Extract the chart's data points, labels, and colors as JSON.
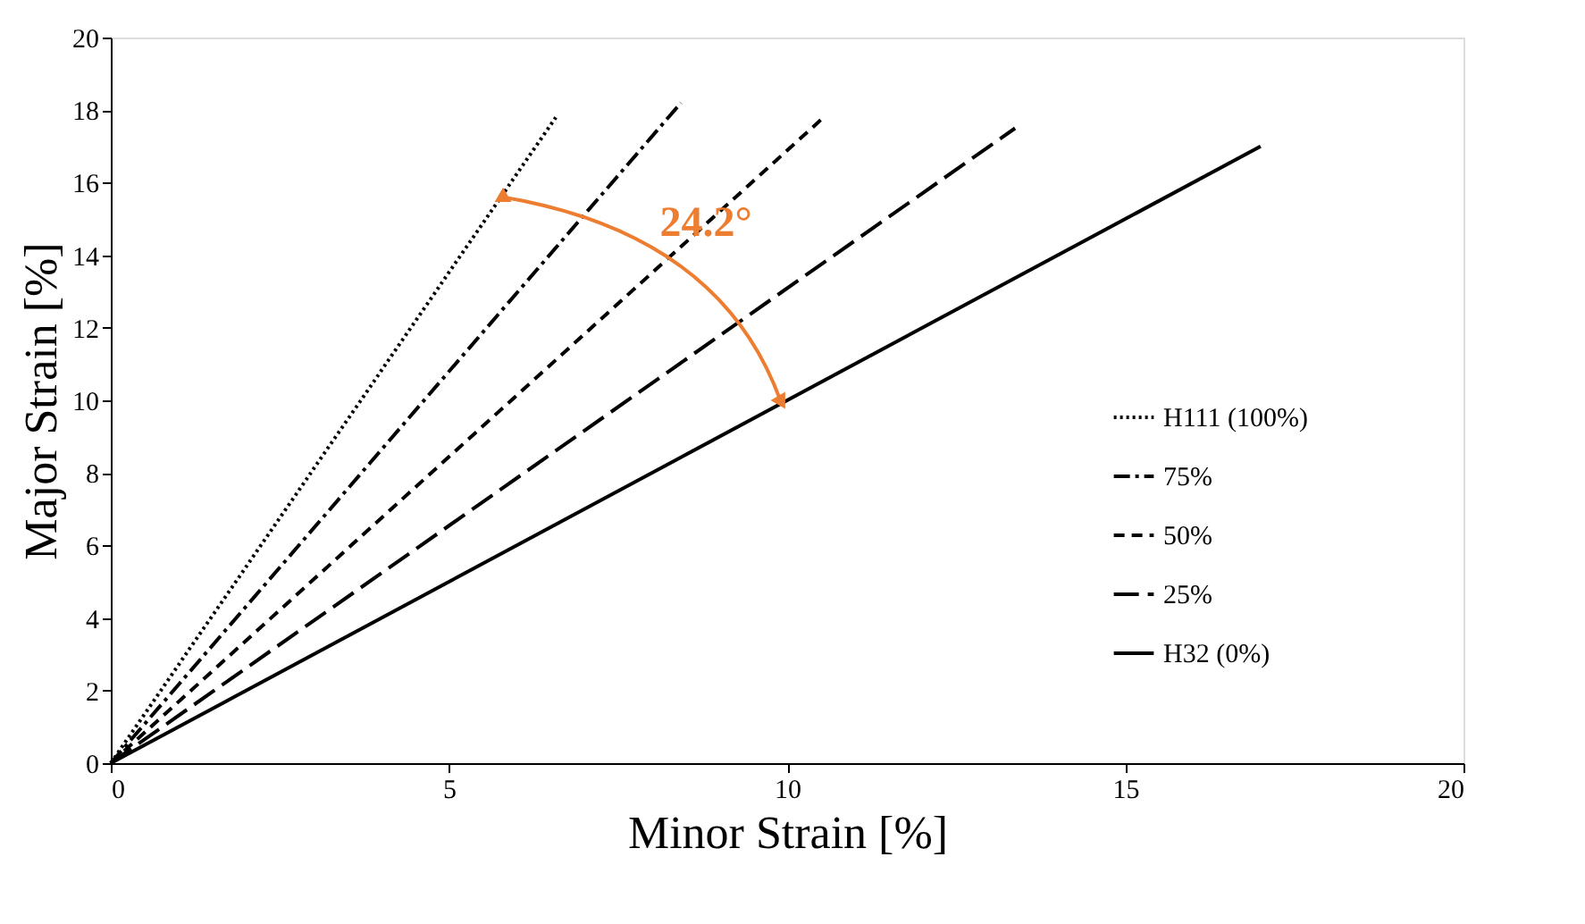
{
  "chart_data": {
    "type": "line",
    "xlabel": "Minor Strain [%]",
    "ylabel": "Major Strain [%]",
    "series": [
      {
        "name": "H111 (100%)",
        "color": "#000000",
        "line_style": "dotted",
        "x": [
          0,
          6.58
        ],
        "values": [
          0,
          17.8
        ]
      },
      {
        "name": "75%",
        "color": "#000000",
        "line_style": "dashdot",
        "x": [
          0,
          8.43
        ],
        "values": [
          0,
          18.2
        ]
      },
      {
        "name": "50%",
        "color": "#000000",
        "line_style": "dashed",
        "x": [
          0,
          10.54
        ],
        "values": [
          0,
          17.8
        ]
      },
      {
        "name": "25%",
        "color": "#000000",
        "line_style": "longdash",
        "x": [
          0,
          13.37
        ],
        "values": [
          0,
          17.5
        ]
      },
      {
        "name": "H32 (0%)",
        "color": "#000000",
        "line_style": "solid",
        "x": [
          0,
          17.0
        ],
        "values": [
          0,
          17.0
        ]
      }
    ],
    "annotations": [
      "24.2°"
    ],
    "xlim": [
      0,
      20
    ],
    "xticks": [
      0,
      5,
      10,
      15,
      20
    ],
    "ylim": [
      0,
      20
    ],
    "yticks": [
      0,
      2,
      4,
      6,
      8,
      10,
      12,
      14,
      16,
      18,
      20
    ],
    "grid": false,
    "legend": "right",
    "marker": "none"
  }
}
